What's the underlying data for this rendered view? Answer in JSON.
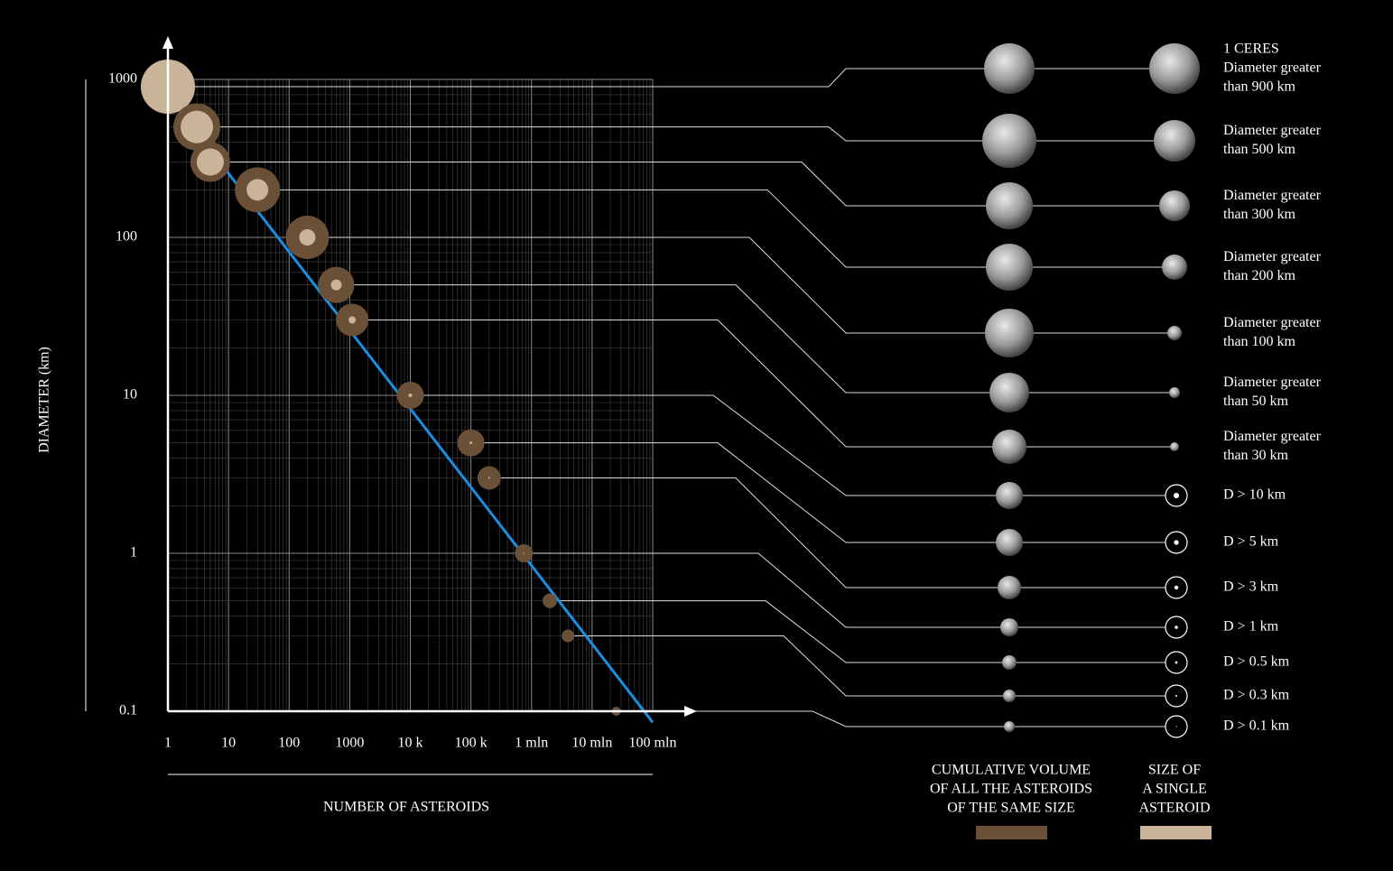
{
  "chart_data": {
    "type": "scatter",
    "y_label": "DIAMETER (km)",
    "x_label": "NUMBER OF ASTEROIDS",
    "xlim": [
      1,
      100000000
    ],
    "ylim": [
      0.1,
      1000
    ],
    "xticks": [
      1,
      10,
      100,
      1000,
      {
        "value": 10000,
        "label": "10 k"
      },
      {
        "value": 100000,
        "label": "100 k"
      },
      {
        "value": 1000000,
        "label": "1 mln"
      },
      {
        "value": 10000000,
        "label": "10 mln"
      },
      {
        "value": 100000000,
        "label": "100 mln"
      }
    ],
    "yticks": [
      0.1,
      1,
      10,
      100,
      1000
    ],
    "grid": true,
    "x": [
      1,
      3,
      5,
      30,
      200,
      600,
      1100,
      10000,
      100000,
      200000,
      750000,
      2000000,
      4000000,
      25000000
    ],
    "y": [
      900,
      500,
      300,
      200,
      100,
      50,
      30,
      10,
      5,
      3,
      1,
      0.5,
      0.3,
      0.1
    ],
    "volume_size": [
      30,
      26,
      22,
      25,
      24,
      20,
      18,
      15,
      15,
      13,
      10,
      8,
      7,
      5
    ],
    "single_size": [
      30,
      18,
      15,
      12,
      9,
      6,
      4,
      2,
      1.5,
      1,
      0.6,
      0,
      0,
      0
    ],
    "volume_color": "#6b5038",
    "single_color": "#c9b49a",
    "trend": {
      "color": "#1a8fe0",
      "x": [
        4,
        100000000
      ],
      "y": [
        400,
        0.085
      ]
    },
    "row_labels": [
      [
        "1 CERES",
        "Diameter greater",
        "than 900 km"
      ],
      [
        "Diameter greater",
        "than 500 km"
      ],
      [
        "Diameter greater",
        "than 300 km"
      ],
      [
        "Diameter greater",
        "than 200 km"
      ],
      [
        "Diameter greater",
        "than 100 km"
      ],
      [
        "Diameter greater",
        "than 50 km"
      ],
      [
        "Diameter greater",
        "than 30 km"
      ],
      [
        "D > 10 km"
      ],
      [
        "D > 5 km"
      ],
      [
        "D > 3 km"
      ],
      [
        "D > 1 km"
      ],
      [
        "D > 0.5 km"
      ],
      [
        "D > 0.3 km"
      ],
      [
        "D > 0.1 km"
      ]
    ],
    "legend": {
      "volume": [
        "CUMULATIVE VOLUME",
        "OF ALL THE ASTEROIDS",
        "OF THE SAME SIZE"
      ],
      "single": [
        "SIZE OF",
        "A SINGLE",
        "ASTEROID"
      ]
    }
  }
}
